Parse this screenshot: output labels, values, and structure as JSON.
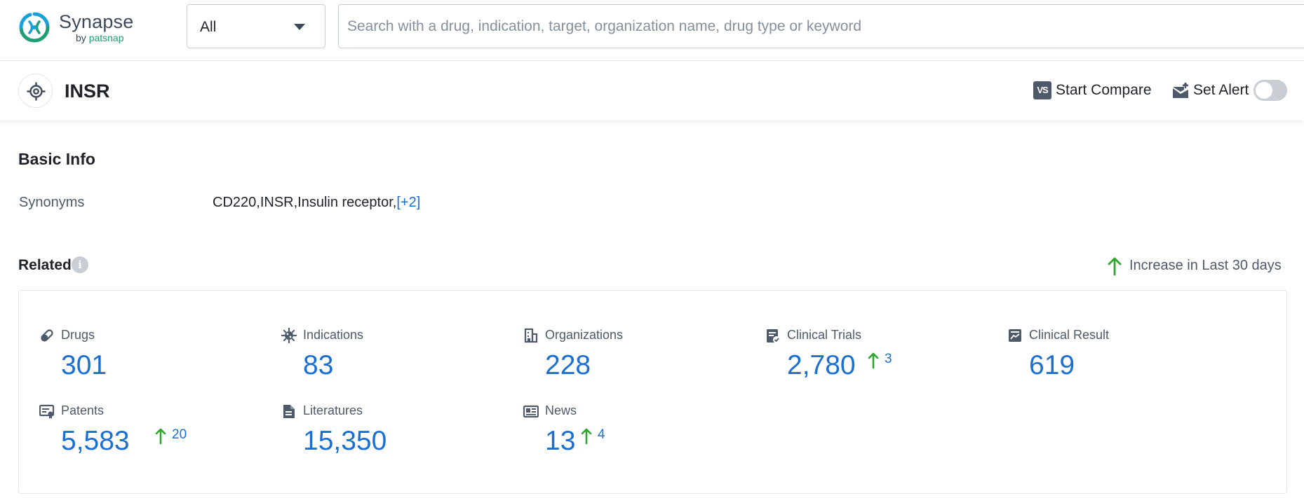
{
  "brand": {
    "name": "Synapse",
    "by": "by ",
    "company": "patsnap",
    "mark": "synapse-logo-icon"
  },
  "search": {
    "scope": "All",
    "placeholder": "Search with a drug, indication, target, organization name, drug type or keyword"
  },
  "target": {
    "title": "INSR",
    "icon": "target-icon"
  },
  "actions": {
    "compare": "Start Compare",
    "compare_icon_text": "VS",
    "alert": "Set Alert",
    "alert_enabled": false
  },
  "basic_info": {
    "heading": "Basic Info",
    "synonyms_label": "Synonyms",
    "synonyms_value": "CD220,INSR,Insulin receptor,",
    "synonyms_more": "[+2]"
  },
  "related": {
    "heading": "Related",
    "legend": "Increase in Last 30 days",
    "colors": {
      "number": "#1b6fd0",
      "increase": "#2fa52f"
    },
    "stats": [
      {
        "key": "drugs",
        "label": "Drugs",
        "value": "301",
        "increase": null,
        "icon": "pill-icon"
      },
      {
        "key": "indications",
        "label": "Indications",
        "value": "83",
        "increase": null,
        "icon": "virus-icon"
      },
      {
        "key": "organizations",
        "label": "Organizations",
        "value": "228",
        "increase": null,
        "icon": "building-icon"
      },
      {
        "key": "clinical_trials",
        "label": "Clinical Trials",
        "value": "2,780",
        "increase": "3",
        "icon": "clipboard-icon"
      },
      {
        "key": "clinical_result",
        "label": "Clinical Result",
        "value": "619",
        "increase": null,
        "icon": "chart-report-icon"
      },
      {
        "key": "patents",
        "label": "Patents",
        "value": "5,583",
        "increase": "20",
        "icon": "certificate-icon"
      },
      {
        "key": "literatures",
        "label": "Literatures",
        "value": "15,350",
        "increase": null,
        "icon": "document-icon"
      },
      {
        "key": "news",
        "label": "News",
        "value": "13",
        "increase": "4",
        "icon": "newspaper-icon"
      }
    ]
  }
}
